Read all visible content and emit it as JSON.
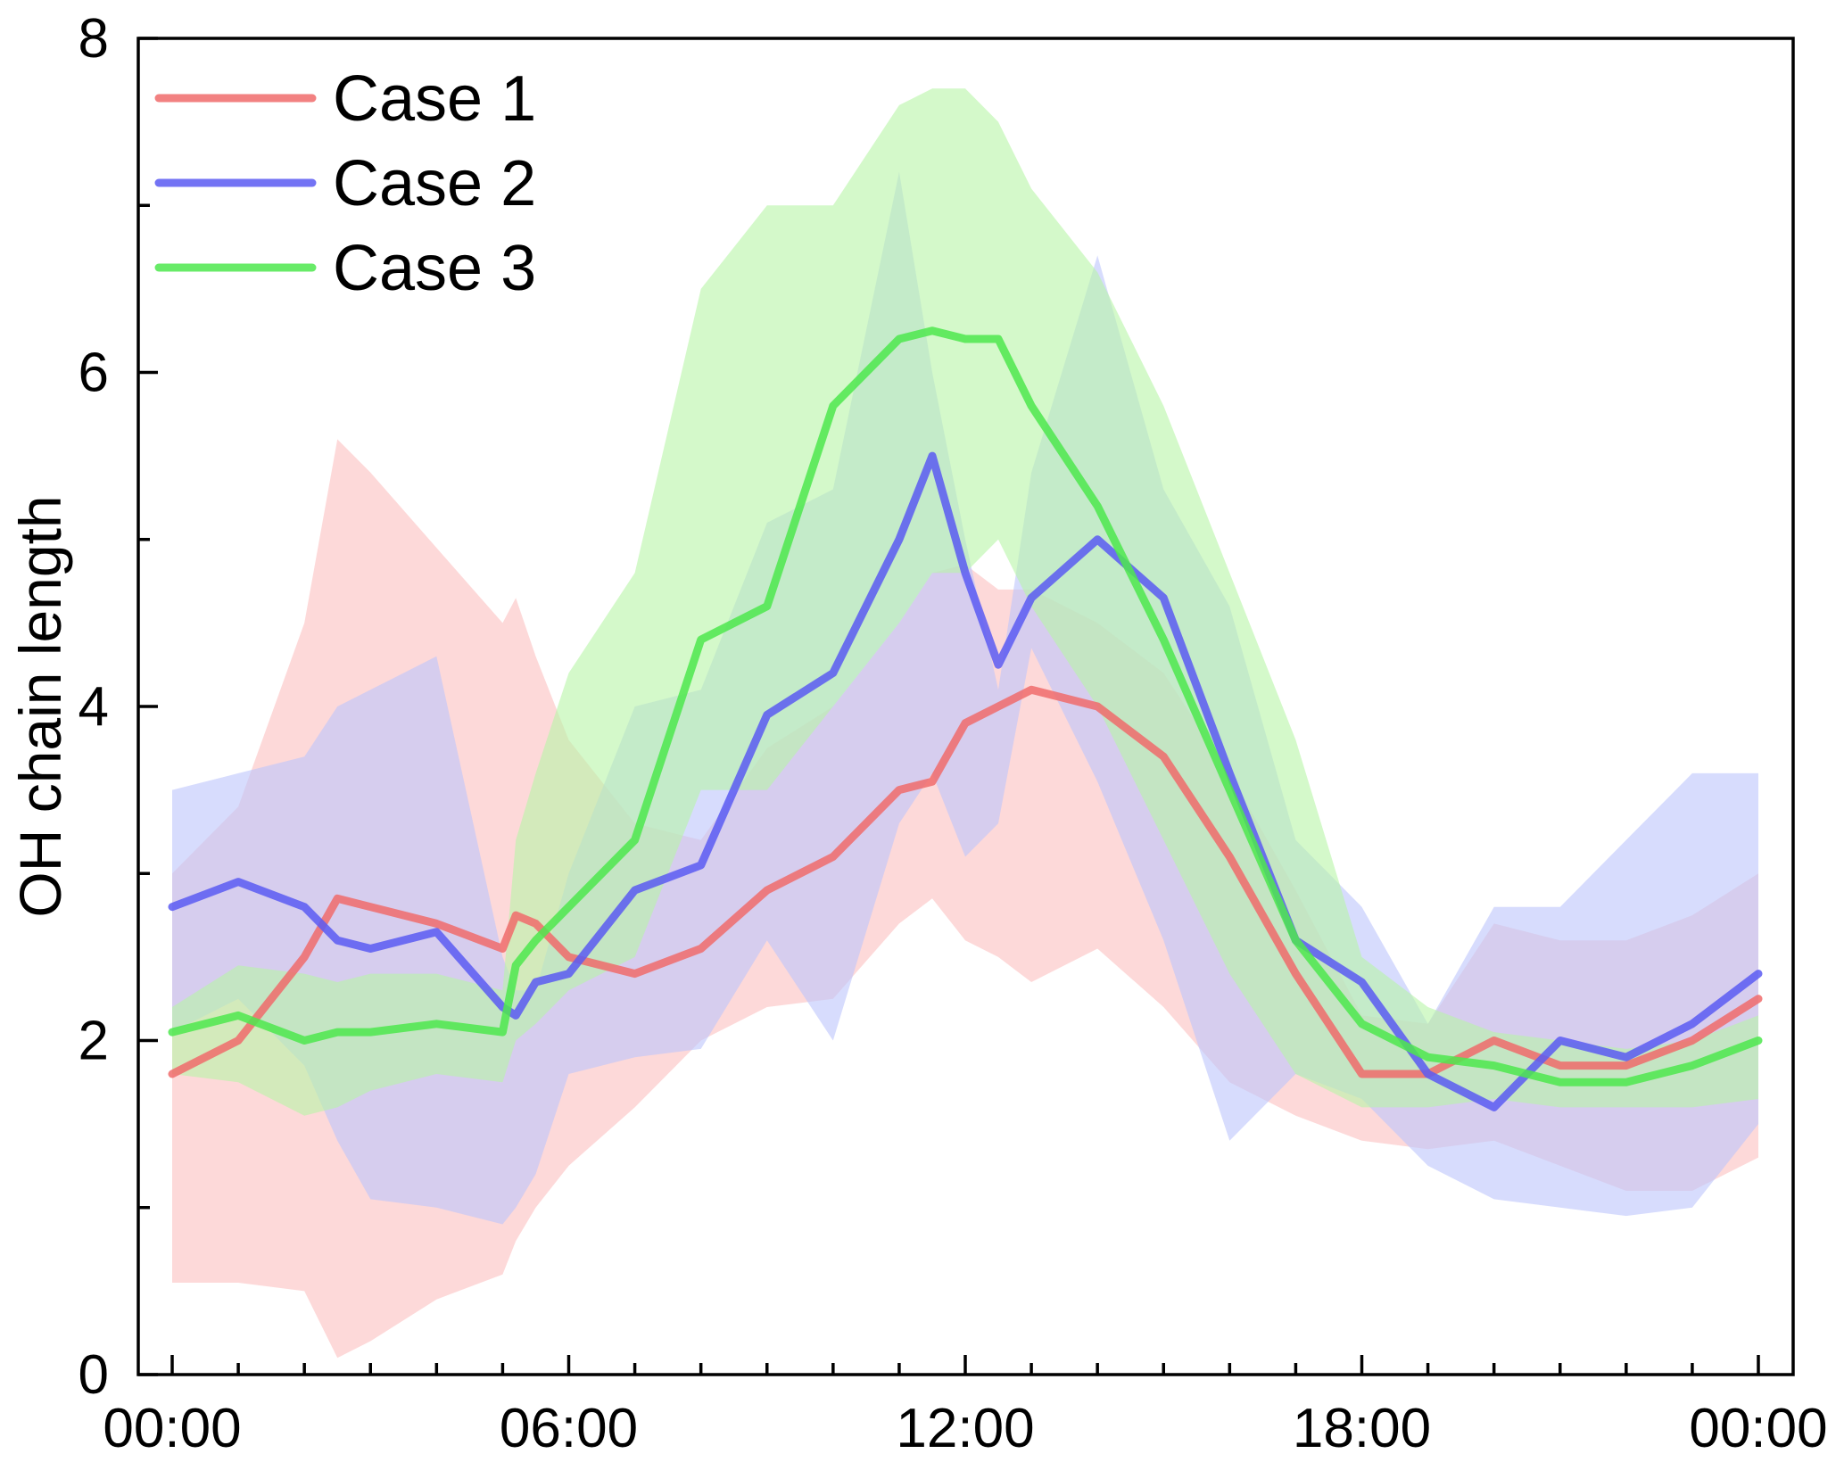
{
  "chart_data": {
    "type": "line",
    "title": "",
    "xlabel": "",
    "ylabel": "OH chain length",
    "xlim": [
      0,
      24
    ],
    "ylim": [
      0,
      8
    ],
    "x_tick_values": [
      0,
      6,
      12,
      18,
      24
    ],
    "x_tick_labels": [
      "00:00",
      "06:00",
      "12:00",
      "18:00",
      "00:00"
    ],
    "x_minor_ticks": [
      0,
      1,
      2,
      3,
      4,
      5,
      6,
      7,
      8,
      9,
      10,
      11,
      12,
      13,
      14,
      15,
      16,
      17,
      18,
      19,
      20,
      21,
      22,
      23,
      24
    ],
    "y_tick_values": [
      0,
      2,
      4,
      6,
      8
    ],
    "y_tick_labels": [
      "0",
      "2",
      "4",
      "6",
      "8"
    ],
    "y_minor_ticks": [
      1,
      3,
      5,
      7
    ],
    "grid": false,
    "legend_position": "top-left",
    "x": [
      0,
      1,
      2,
      2.5,
      3,
      4,
      5,
      5.2,
      5.5,
      6,
      7,
      8,
      9,
      10,
      11,
      11.5,
      12,
      12.5,
      13,
      14,
      15,
      16,
      17,
      18,
      19,
      20,
      21,
      22,
      23,
      24
    ],
    "series": [
      {
        "name": "Case 1",
        "color": "#f06b6b",
        "fill_color": "#fbbfbf",
        "values": [
          1.8,
          2.0,
          2.5,
          2.85,
          2.8,
          2.7,
          2.55,
          2.75,
          2.7,
          2.5,
          2.4,
          2.55,
          2.9,
          3.1,
          3.5,
          3.55,
          3.9,
          4.0,
          4.1,
          4.0,
          3.7,
          3.1,
          2.4,
          1.8,
          1.8,
          2.0,
          1.85,
          1.85,
          2.0,
          2.25
        ],
        "lower": [
          0.55,
          0.55,
          0.5,
          0.1,
          0.2,
          0.45,
          0.6,
          0.8,
          1.0,
          1.25,
          1.6,
          2.0,
          2.2,
          2.25,
          2.7,
          2.85,
          2.6,
          2.5,
          2.35,
          2.55,
          2.2,
          1.75,
          1.55,
          1.4,
          1.35,
          1.4,
          1.25,
          1.1,
          1.1,
          1.3
        ],
        "upper": [
          3.0,
          3.4,
          4.5,
          5.6,
          5.4,
          4.95,
          4.5,
          4.65,
          4.3,
          3.8,
          3.3,
          3.2,
          3.75,
          4.0,
          4.5,
          4.8,
          4.85,
          4.7,
          4.7,
          4.5,
          4.2,
          3.6,
          2.9,
          2.15,
          2.1,
          2.7,
          2.6,
          2.6,
          2.75,
          3.0
        ]
      },
      {
        "name": "Case 2",
        "color": "#5a5af2",
        "fill_color": "#bcc5fb",
        "values": [
          2.8,
          2.95,
          2.8,
          2.6,
          2.55,
          2.65,
          2.2,
          2.15,
          2.35,
          2.4,
          2.9,
          3.05,
          3.95,
          4.2,
          5.0,
          5.5,
          4.8,
          4.25,
          4.65,
          5.0,
          4.65,
          3.6,
          2.6,
          2.35,
          1.8,
          1.6,
          2.0,
          1.9,
          2.1,
          2.4
        ],
        "lower": [
          2.05,
          2.25,
          1.85,
          1.4,
          1.05,
          1.0,
          0.9,
          1.0,
          1.2,
          1.8,
          1.9,
          1.95,
          2.6,
          2.0,
          3.3,
          3.6,
          3.1,
          3.3,
          4.35,
          3.55,
          2.6,
          1.4,
          1.8,
          1.65,
          1.25,
          1.05,
          1.0,
          0.95,
          1.0,
          1.5
        ],
        "upper": [
          3.5,
          3.6,
          3.7,
          4.0,
          4.1,
          4.3,
          2.5,
          2.3,
          2.3,
          3.0,
          4.0,
          4.1,
          5.1,
          5.3,
          7.2,
          6.0,
          5.0,
          4.1,
          5.4,
          6.7,
          5.3,
          4.6,
          3.2,
          2.8,
          2.1,
          2.8,
          2.8,
          3.2,
          3.6,
          3.6
        ]
      },
      {
        "name": "Case 3",
        "color": "#4ee84e",
        "fill_color": "#b8f5a6",
        "values": [
          2.05,
          2.15,
          2.0,
          2.05,
          2.05,
          2.1,
          2.05,
          2.45,
          2.6,
          2.8,
          3.2,
          4.4,
          4.6,
          5.8,
          6.2,
          6.25,
          6.2,
          6.2,
          5.8,
          5.2,
          4.4,
          3.5,
          2.6,
          2.1,
          1.9,
          1.85,
          1.75,
          1.75,
          1.85,
          2.0
        ],
        "lower": [
          1.8,
          1.75,
          1.55,
          1.6,
          1.7,
          1.8,
          1.75,
          2.0,
          2.1,
          2.3,
          2.5,
          3.5,
          3.5,
          4.0,
          4.5,
          4.8,
          4.8,
          5.0,
          4.6,
          4.0,
          3.2,
          2.4,
          1.8,
          1.6,
          1.6,
          1.65,
          1.6,
          1.6,
          1.6,
          1.65
        ],
        "upper": [
          2.2,
          2.45,
          2.4,
          2.35,
          2.4,
          2.4,
          2.3,
          3.2,
          3.6,
          4.2,
          4.8,
          6.5,
          7.0,
          7.0,
          7.6,
          7.7,
          7.7,
          7.5,
          7.1,
          6.6,
          5.8,
          4.8,
          3.8,
          2.5,
          2.2,
          2.05,
          2.0,
          1.95,
          2.0,
          2.15
        ]
      }
    ]
  }
}
